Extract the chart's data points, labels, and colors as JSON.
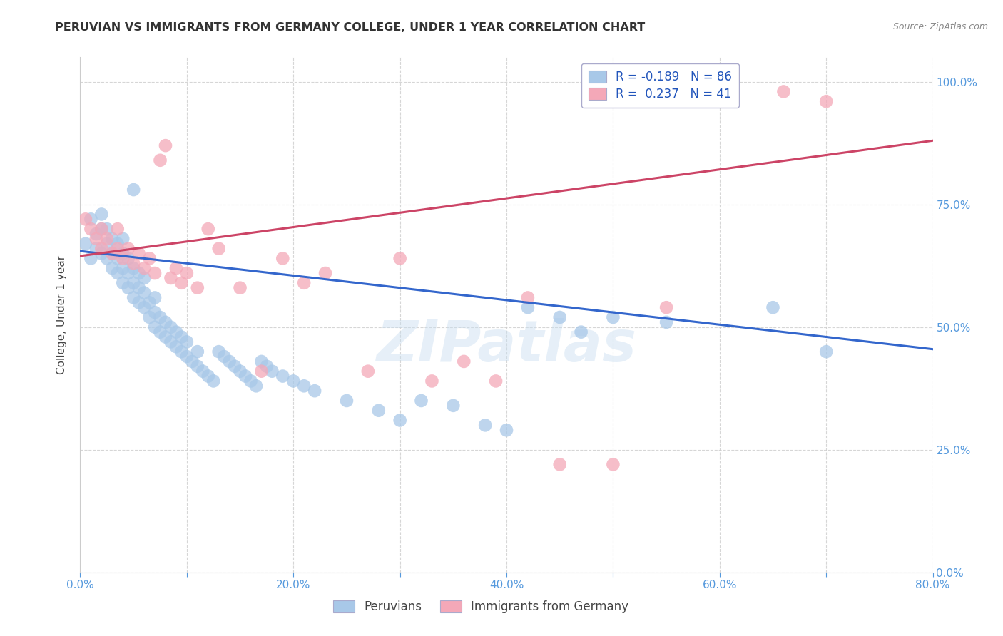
{
  "title": "PERUVIAN VS IMMIGRANTS FROM GERMANY COLLEGE, UNDER 1 YEAR CORRELATION CHART",
  "source": "Source: ZipAtlas.com",
  "xlabel_ticks": [
    "0.0%",
    "",
    "20.0%",
    "",
    "40.0%",
    "",
    "60.0%",
    "",
    "80.0%"
  ],
  "ylabel_ticks_left": [
    "",
    "",
    "",
    "",
    ""
  ],
  "ylabel_ticks_right": [
    "0.0%",
    "25.0%",
    "50.0%",
    "75.0%",
    "100.0%"
  ],
  "ylabel_label": "College, Under 1 year",
  "xlim": [
    0.0,
    0.8
  ],
  "ylim": [
    0.0,
    1.05
  ],
  "legend_labels": [
    "Peruvians",
    "Immigrants from Germany"
  ],
  "r_blue": -0.189,
  "n_blue": 86,
  "r_pink": 0.237,
  "n_pink": 41,
  "blue_color": "#a8c8e8",
  "pink_color": "#f4a8b8",
  "blue_line_color": "#3366cc",
  "pink_line_color": "#cc4466",
  "watermark": "ZIPatlas",
  "blue_scatter_x": [
    0.005,
    0.01,
    0.01,
    0.015,
    0.015,
    0.02,
    0.02,
    0.02,
    0.025,
    0.025,
    0.025,
    0.03,
    0.03,
    0.03,
    0.035,
    0.035,
    0.035,
    0.04,
    0.04,
    0.04,
    0.04,
    0.045,
    0.045,
    0.045,
    0.05,
    0.05,
    0.05,
    0.05,
    0.055,
    0.055,
    0.055,
    0.06,
    0.06,
    0.06,
    0.065,
    0.065,
    0.07,
    0.07,
    0.07,
    0.075,
    0.075,
    0.08,
    0.08,
    0.085,
    0.085,
    0.09,
    0.09,
    0.095,
    0.095,
    0.1,
    0.1,
    0.105,
    0.11,
    0.11,
    0.115,
    0.12,
    0.125,
    0.13,
    0.135,
    0.14,
    0.145,
    0.15,
    0.155,
    0.16,
    0.165,
    0.17,
    0.175,
    0.18,
    0.19,
    0.2,
    0.21,
    0.22,
    0.25,
    0.28,
    0.3,
    0.32,
    0.35,
    0.38,
    0.4,
    0.42,
    0.45,
    0.47,
    0.5,
    0.55,
    0.65,
    0.7
  ],
  "blue_scatter_y": [
    0.67,
    0.64,
    0.72,
    0.66,
    0.69,
    0.65,
    0.7,
    0.73,
    0.64,
    0.67,
    0.7,
    0.62,
    0.65,
    0.68,
    0.61,
    0.64,
    0.67,
    0.59,
    0.62,
    0.65,
    0.68,
    0.58,
    0.61,
    0.64,
    0.56,
    0.59,
    0.62,
    0.78,
    0.55,
    0.58,
    0.61,
    0.54,
    0.57,
    0.6,
    0.52,
    0.55,
    0.5,
    0.53,
    0.56,
    0.49,
    0.52,
    0.48,
    0.51,
    0.47,
    0.5,
    0.46,
    0.49,
    0.45,
    0.48,
    0.44,
    0.47,
    0.43,
    0.42,
    0.45,
    0.41,
    0.4,
    0.39,
    0.45,
    0.44,
    0.43,
    0.42,
    0.41,
    0.4,
    0.39,
    0.38,
    0.43,
    0.42,
    0.41,
    0.4,
    0.39,
    0.38,
    0.37,
    0.35,
    0.33,
    0.31,
    0.35,
    0.34,
    0.3,
    0.29,
    0.54,
    0.52,
    0.49,
    0.52,
    0.51,
    0.54,
    0.45
  ],
  "pink_scatter_x": [
    0.005,
    0.01,
    0.015,
    0.02,
    0.02,
    0.025,
    0.03,
    0.035,
    0.035,
    0.04,
    0.045,
    0.05,
    0.055,
    0.06,
    0.065,
    0.07,
    0.075,
    0.08,
    0.085,
    0.09,
    0.095,
    0.1,
    0.11,
    0.12,
    0.13,
    0.15,
    0.17,
    0.19,
    0.21,
    0.23,
    0.27,
    0.3,
    0.33,
    0.36,
    0.39,
    0.42,
    0.45,
    0.5,
    0.55,
    0.66,
    0.7
  ],
  "pink_scatter_y": [
    0.72,
    0.7,
    0.68,
    0.66,
    0.7,
    0.68,
    0.65,
    0.66,
    0.7,
    0.64,
    0.66,
    0.63,
    0.65,
    0.62,
    0.64,
    0.61,
    0.84,
    0.87,
    0.6,
    0.62,
    0.59,
    0.61,
    0.58,
    0.7,
    0.66,
    0.58,
    0.41,
    0.64,
    0.59,
    0.61,
    0.41,
    0.64,
    0.39,
    0.43,
    0.39,
    0.56,
    0.22,
    0.22,
    0.54,
    0.98,
    0.96
  ]
}
